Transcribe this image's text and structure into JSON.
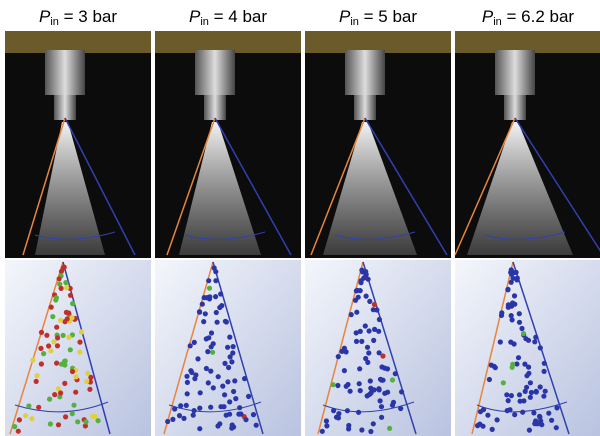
{
  "columns": [
    {
      "symbol": "P",
      "subscript": "in",
      "label": "= 3 bar"
    },
    {
      "symbol": "P",
      "subscript": "in",
      "label": "= 4 bar"
    },
    {
      "symbol": "P",
      "subscript": "in",
      "label": "= 5 bar"
    },
    {
      "symbol": "P",
      "subscript": "in",
      "label": "= 6.2 bar"
    }
  ]
}
